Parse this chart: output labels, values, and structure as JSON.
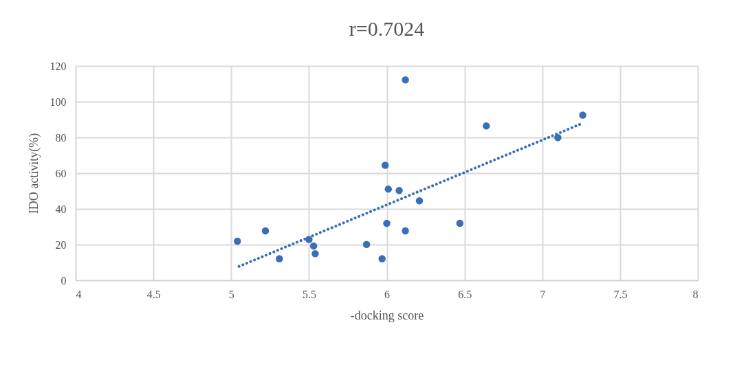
{
  "chart_data": {
    "type": "scatter",
    "title": "r=0.7024",
    "xlabel": "-docking score",
    "ylabel": "IDO activity(%)",
    "xlim": [
      4,
      8
    ],
    "xticks": [
      4,
      4.5,
      5,
      5.5,
      6,
      6.5,
      7,
      7.5,
      8
    ],
    "ylim": [
      0,
      120
    ],
    "yticks": [
      0,
      20,
      40,
      60,
      80,
      100,
      120
    ],
    "grid": true,
    "series": [
      {
        "marker": "circle",
        "color": "#3a6eb8",
        "x": [
          5.04,
          5.22,
          5.31,
          5.5,
          5.53,
          5.54,
          5.87,
          5.97,
          5.99,
          6.0,
          6.01,
          6.08,
          6.12,
          6.21,
          6.47,
          6.12,
          6.64,
          7.1,
          7.26
        ],
        "values": [
          21.9,
          27.7,
          12.1,
          22.9,
          19.2,
          14.9,
          20.1,
          12.1,
          64.4,
          31.9,
          51.1,
          50.3,
          27.7,
          44.5,
          31.9,
          112.2,
          86.4,
          79.9,
          92.5
        ]
      },
      {
        "type": "line",
        "line_style": "dotted",
        "color": "#3a6eb8",
        "x": [
          5.05,
          7.26
        ],
        "values": [
          7.8,
          88
        ]
      }
    ]
  }
}
